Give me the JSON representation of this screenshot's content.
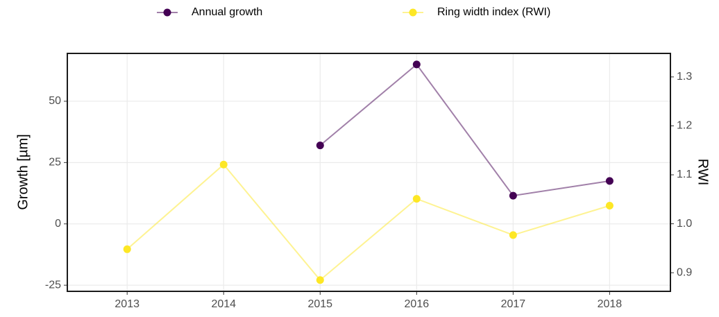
{
  "chart_data": {
    "type": "line",
    "x": [
      2013,
      2014,
      2015,
      2016,
      2017,
      2018
    ],
    "xlim": [
      2012.38,
      2018.63
    ],
    "xticks": [
      2013,
      2014,
      2015,
      2016,
      2017,
      2018
    ],
    "ylabel": "Growth [µm]",
    "ylim": [
      -27.5,
      69.5
    ],
    "yticks": [
      -25,
      0,
      25,
      50
    ],
    "y2label": "RWI",
    "y2lim": [
      0.862,
      1.348
    ],
    "y2ticks": [
      0.9,
      {
        "value": 1,
        "label": "1.0"
      },
      1.1,
      1.2,
      1.3
    ],
    "grid": true,
    "legend": "top",
    "series": [
      {
        "name": "Annual growth",
        "color": "#440154",
        "values": [
          null,
          null,
          32,
          65,
          11.5,
          17.5
        ]
      },
      {
        "name": "Ring width index (RWI)",
        "color": "#fde725",
        "axis": "y2",
        "values": [
          0.948,
          1.121,
          0.885,
          1.051,
          0.977,
          1.037
        ]
      }
    ]
  }
}
